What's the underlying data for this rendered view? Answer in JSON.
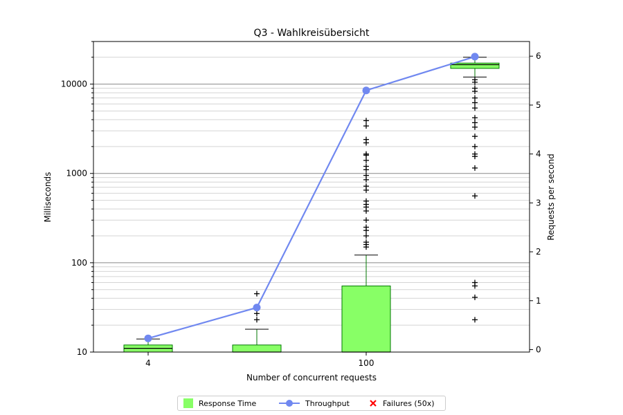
{
  "chart_data": {
    "type": "box",
    "title": "Q3 - Wahlkreisübersicht",
    "xlabel": "Number of concurrent requests",
    "ylabel_left": "Milliseconds",
    "ylabel_right": "Requests per second",
    "x_tick_labels": [
      "4",
      "",
      "100",
      ""
    ],
    "y_left_scale": "log",
    "y_left_lim": [
      10,
      30000
    ],
    "y_left_ticks": [
      10,
      100,
      1000,
      10000
    ],
    "y_left_tick_labels": [
      "10",
      "100",
      "1000",
      "10000"
    ],
    "y_right_lim": [
      -0.05,
      6.3
    ],
    "y_right_ticks": [
      0,
      1,
      2,
      3,
      4,
      5,
      6
    ],
    "y_right_tick_labels": [
      "0",
      "1",
      "2",
      "3",
      "4",
      "5",
      "6"
    ],
    "grid": "horizontal, log major and minor",
    "series": [
      {
        "name": "Response Time",
        "kind": "box",
        "color": "#88ff66",
        "edge_color": "#007700",
        "boxes": [
          {
            "group": 1,
            "whisker_low": 10,
            "q1": 10,
            "median": 11,
            "q3": 12,
            "whisker_high": 14,
            "outliers": []
          },
          {
            "group": 2,
            "whisker_low": 10,
            "q1": 10,
            "median": 10,
            "q3": 12,
            "whisker_high": 18,
            "outliers": [
              23,
              27,
              31,
              45
            ]
          },
          {
            "group": 3,
            "whisker_low": 10,
            "q1": 10,
            "median": 10,
            "q3": 55,
            "whisker_high": 122,
            "outliers": [
              150,
              160,
              170,
              200,
              230,
              250,
              300,
              380,
              420,
              450,
              490,
              650,
              720,
              850,
              950,
              1100,
              1200,
              1400,
              1600,
              1650,
              2200,
              2400,
              3400,
              3900
            ]
          },
          {
            "group": 4,
            "whisker_low": 12000,
            "q1": 15000,
            "median": 16500,
            "q3": 17200,
            "whisker_high": 20000,
            "outliers": [
              23,
              41,
              55,
              60,
              560,
              1150,
              1550,
              1650,
              2000,
              2600,
              3300,
              3700,
              4200,
              5400,
              6200,
              7000,
              8300,
              9000,
              10500,
              11200
            ]
          }
        ]
      },
      {
        "name": "Throughput",
        "kind": "line",
        "color": "#7088f0",
        "points": [
          {
            "group": 1,
            "value": 0.23
          },
          {
            "group": 2,
            "value": 0.86
          },
          {
            "group": 3,
            "value": 5.3
          },
          {
            "group": 4,
            "value": 5.99
          }
        ]
      },
      {
        "name": "Failures (50x)",
        "kind": "marker",
        "color": "#ff0000",
        "points": []
      }
    ],
    "legend_position": "bottom-center"
  },
  "legend": [
    {
      "label": "Response Time",
      "type": "square",
      "color": "#88ff66"
    },
    {
      "label": "Throughput",
      "type": "line-marker",
      "color": "#7088f0"
    },
    {
      "label": "Failures (50x)",
      "type": "cross",
      "color": "#ff0000"
    }
  ]
}
